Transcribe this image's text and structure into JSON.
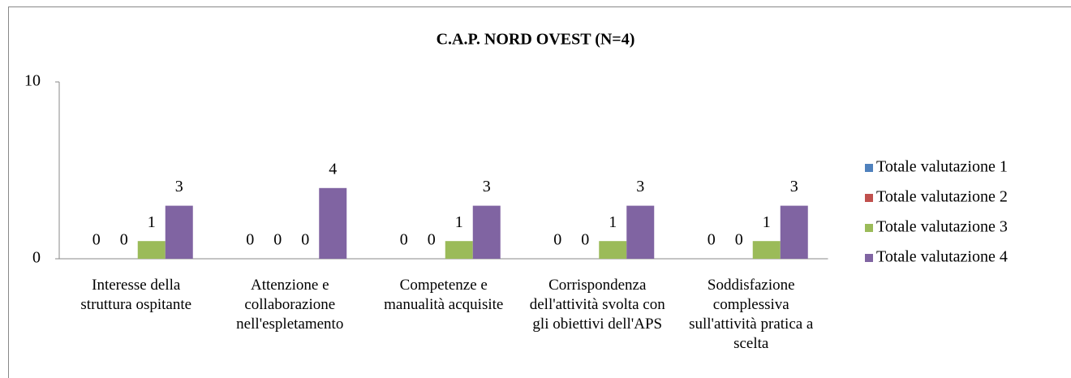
{
  "chart_data": {
    "type": "bar",
    "title": "C.A.P. NORD OVEST (N=4)",
    "categories": [
      "Interesse della struttura ospitante",
      "Attenzione e collaborazione nell'espletamento",
      "Competenze e manualità acquisite",
      "Corrispondenza dell'attività svolta con gli obiettivi dell'APS",
      "Soddisfazione complessiva sull'attività pratica a scelta"
    ],
    "series": [
      {
        "name": "Totale valutazione 1",
        "color": "#4f81bd",
        "values": [
          0,
          0,
          0,
          0,
          0
        ]
      },
      {
        "name": "Totale valutazione 2",
        "color": "#c0504d",
        "values": [
          0,
          0,
          0,
          0,
          0
        ]
      },
      {
        "name": "Totale valutazione 3",
        "color": "#9bbb59",
        "values": [
          1,
          0,
          1,
          1,
          1
        ]
      },
      {
        "name": "Totale valutazione 4",
        "color": "#8064a2",
        "values": [
          3,
          4,
          3,
          3,
          3
        ]
      }
    ],
    "ylim": [
      0,
      10
    ],
    "yticks": [
      0,
      10
    ],
    "grid": false,
    "legend": "right"
  }
}
